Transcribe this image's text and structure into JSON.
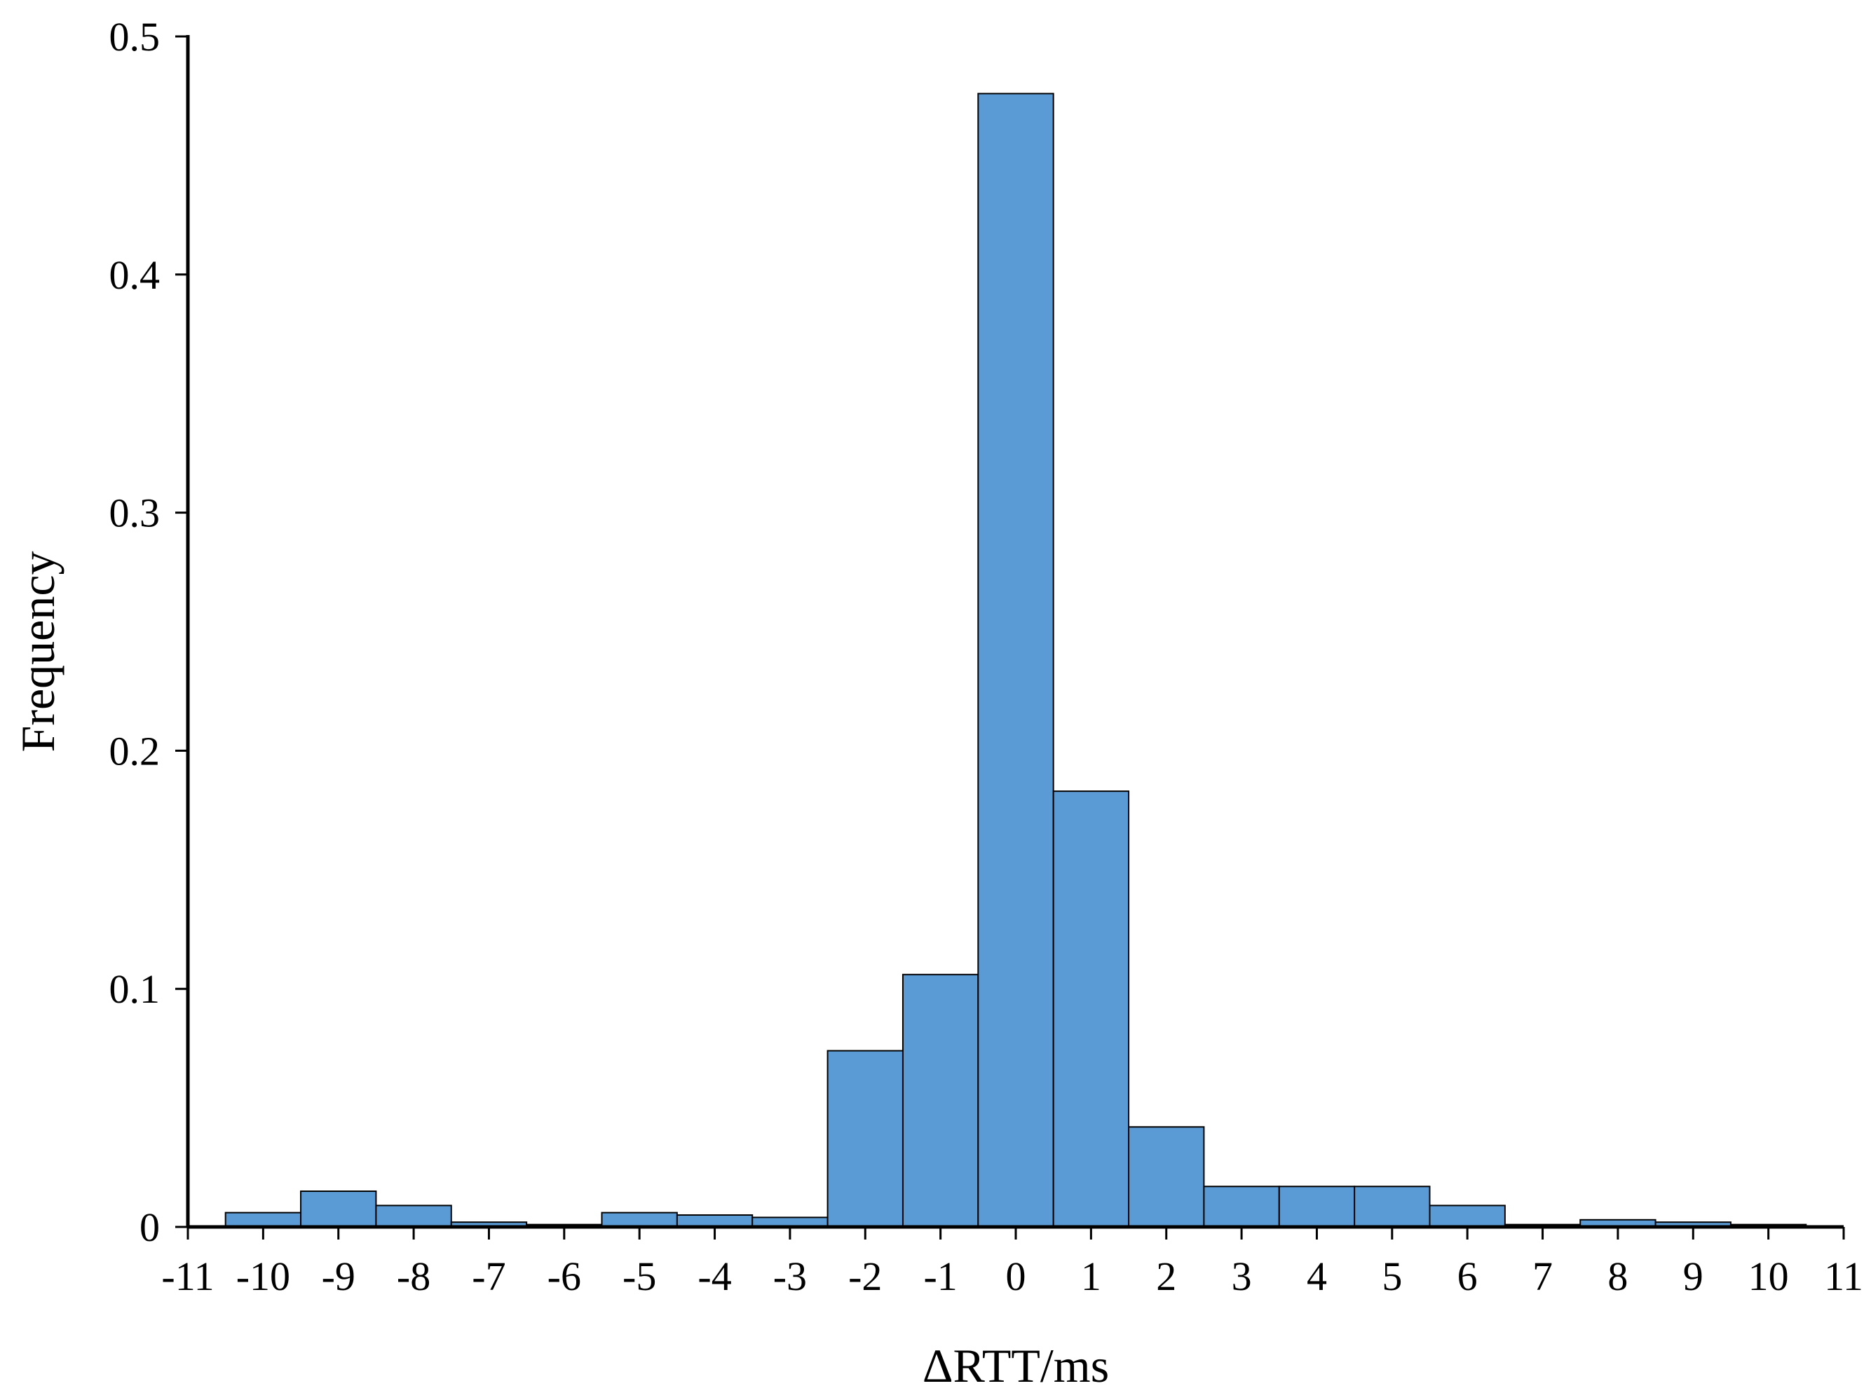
{
  "chart_data": {
    "type": "bar",
    "xlabel": "ΔRTT/ms",
    "ylabel": "Frequency",
    "xlim": [
      -11,
      11
    ],
    "ylim": [
      0,
      0.5
    ],
    "x_ticks": [
      -11,
      -10,
      -9,
      -8,
      -7,
      -6,
      -5,
      -4,
      -3,
      -2,
      -1,
      0,
      1,
      2,
      3,
      4,
      5,
      6,
      7,
      8,
      9,
      10,
      11
    ],
    "x_tick_labels": [
      "-11",
      "-10",
      "-9",
      "-8",
      "-7",
      "-6",
      "-5",
      "-4",
      "-3",
      "-2",
      "-1",
      "0",
      "1",
      "2",
      "3",
      "4",
      "5",
      "6",
      "7",
      "8",
      "9",
      "10",
      "11"
    ],
    "y_ticks": [
      0,
      0.1,
      0.2,
      0.3,
      0.4,
      0.5
    ],
    "y_tick_labels": [
      "0",
      "0.1",
      "0.2",
      "0.3",
      "0.4",
      "0.5"
    ],
    "bin_width": 1,
    "x": [
      -10,
      -9,
      -8,
      -7,
      -6,
      -5,
      -4,
      -3,
      -2,
      -1,
      0,
      1,
      2,
      3,
      4,
      5,
      6,
      7,
      8,
      9,
      10
    ],
    "values": [
      0.006,
      0.015,
      0.009,
      0.002,
      0.001,
      0.006,
      0.005,
      0.004,
      0.074,
      0.106,
      0.476,
      0.183,
      0.042,
      0.017,
      0.017,
      0.017,
      0.009,
      0.001,
      0.003,
      0.002,
      0.001
    ],
    "grid": false,
    "legend": "none",
    "colors": {
      "bar_fill": "#5b9bd5",
      "bar_stroke": "#000000",
      "axis": "#000000"
    }
  }
}
